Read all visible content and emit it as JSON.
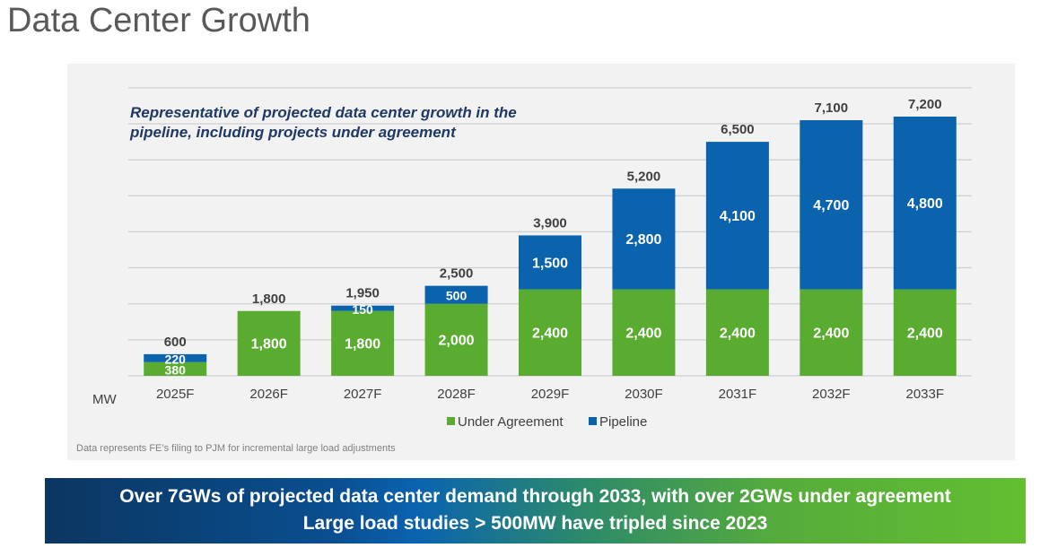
{
  "title": "Data Center Growth",
  "subtitle_line1": "Representative of projected data center growth in the",
  "subtitle_line2": "pipeline, including projects under agreement",
  "note": "Data represents FE’s filing to PJM for incremental large load adjustments",
  "banner": {
    "line1": "Over 7GWs of projected data center demand through 2033, with over 2GWs under agreement",
    "line2": "Large load studies > 500MW have tripled since 2023"
  },
  "chart_data": {
    "type": "bar",
    "stacked": true,
    "categories": [
      "2025F",
      "2026F",
      "2027F",
      "2028F",
      "2029F",
      "2030F",
      "2031F",
      "2032F",
      "2033F"
    ],
    "series": [
      {
        "name": "Under Agreement",
        "color": "#5aac31",
        "values": [
          380,
          1800,
          1800,
          2000,
          2400,
          2400,
          2400,
          2400,
          2400
        ]
      },
      {
        "name": "Pipeline",
        "color": "#0b63ae",
        "values": [
          220,
          0,
          150,
          500,
          1500,
          2800,
          4100,
          4700,
          4800
        ]
      }
    ],
    "totals": [
      600,
      1800,
      1950,
      2500,
      3900,
      5200,
      6500,
      7100,
      7200
    ],
    "total_labels": [
      "600",
      "1,800",
      "1,950",
      "2,500",
      "3,900",
      "5,200",
      "6,500",
      "7,100",
      "7,200"
    ],
    "segment_labels": [
      [
        "380",
        "1,800",
        "1,800",
        "2,000",
        "2,400",
        "2,400",
        "2,400",
        "2,400",
        "2,400"
      ],
      [
        "220",
        "",
        "150",
        "500",
        "1,500",
        "2,800",
        "4,100",
        "4,700",
        "4,800"
      ]
    ],
    "ylabel": "MW",
    "ylim": [
      0,
      8000
    ],
    "grid": true,
    "legend": "bottom"
  }
}
